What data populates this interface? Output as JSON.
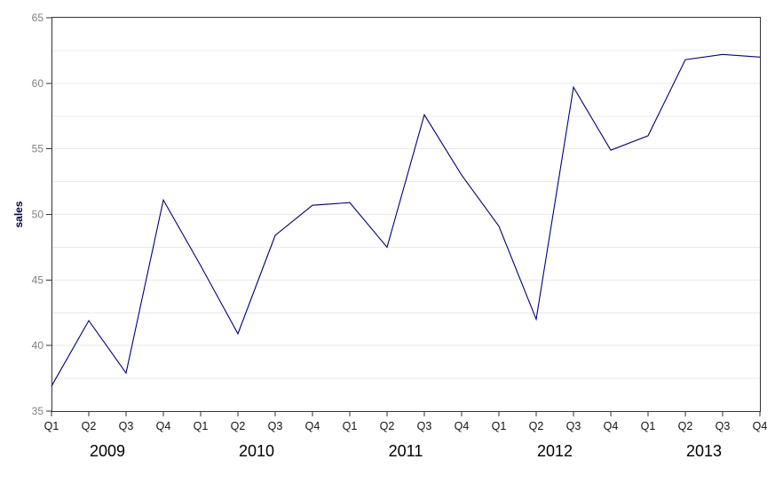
{
  "chart_data": {
    "type": "line",
    "title": "",
    "xlabel": "",
    "ylabel": "sales",
    "ylim": [
      35,
      65
    ],
    "yticks": [
      35,
      40,
      45,
      50,
      55,
      60,
      65
    ],
    "gridlines": [
      37.5,
      40,
      42.5,
      45,
      47.5,
      50,
      52.5,
      55,
      57.5,
      60,
      62.5
    ],
    "grid": "horizontal-only",
    "legend": "none",
    "quarter_tick_labels": [
      "Q1",
      "Q2",
      "Q3",
      "Q4",
      "Q1",
      "Q2",
      "Q3",
      "Q4",
      "Q1",
      "Q2",
      "Q3",
      "Q4",
      "Q1",
      "Q2",
      "Q3",
      "Q4",
      "Q1",
      "Q2",
      "Q3",
      "Q4"
    ],
    "year_labels": [
      "2009",
      "2010",
      "2011",
      "2012",
      "2013"
    ],
    "series": [
      {
        "name": "sales",
        "values": [
          36.9,
          41.9,
          37.9,
          51.1,
          46.1,
          40.9,
          48.4,
          50.7,
          50.9,
          47.5,
          57.6,
          53.0,
          49.1,
          42.0,
          59.7,
          54.9,
          56.0,
          61.8,
          62.2,
          62.0
        ]
      }
    ],
    "colors": {
      "line": "#000080",
      "grid": "#e9e9e9",
      "axis_box": "#333333",
      "tick": "#333333",
      "y_tick_label": "#808080",
      "quarter_label": "#111111",
      "year_label": "#000000",
      "ylabel": "#000040",
      "background": "#ffffff"
    }
  }
}
